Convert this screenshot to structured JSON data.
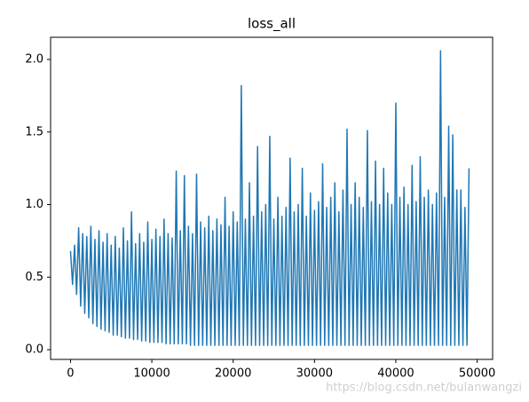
{
  "chart_data": {
    "type": "line",
    "title": "loss_all",
    "color": "#1f77b4",
    "x": [
      0,
      250,
      500,
      750,
      1000,
      1250,
      1500,
      1750,
      2000,
      2250,
      2500,
      2750,
      3000,
      3250,
      3500,
      3750,
      4000,
      4250,
      4500,
      4750,
      5000,
      5250,
      5500,
      5750,
      6000,
      6250,
      6500,
      6750,
      7000,
      7250,
      7500,
      7750,
      8000,
      8250,
      8500,
      8750,
      9000,
      9250,
      9500,
      9750,
      10000,
      10250,
      10500,
      10750,
      11000,
      11250,
      11500,
      11750,
      12000,
      12250,
      12500,
      12750,
      13000,
      13250,
      13500,
      13750,
      14000,
      14250,
      14500,
      14750,
      15000,
      15250,
      15500,
      15750,
      16000,
      16250,
      16500,
      16750,
      17000,
      17250,
      17500,
      17750,
      18000,
      18250,
      18500,
      18750,
      19000,
      19250,
      19500,
      19750,
      20000,
      20250,
      20500,
      20750,
      21000,
      21250,
      21500,
      21750,
      22000,
      22250,
      22500,
      22750,
      23000,
      23250,
      23500,
      23750,
      24000,
      24250,
      24500,
      24750,
      25000,
      25250,
      25500,
      25750,
      26000,
      26250,
      26500,
      26750,
      27000,
      27250,
      27500,
      27750,
      28000,
      28250,
      28500,
      28750,
      29000,
      29250,
      29500,
      29750,
      30000,
      30250,
      30500,
      30750,
      31000,
      31250,
      31500,
      31750,
      32000,
      32250,
      32500,
      32750,
      33000,
      33250,
      33500,
      33750,
      34000,
      34250,
      34500,
      34750,
      35000,
      35250,
      35500,
      35750,
      36000,
      36250,
      36500,
      36750,
      37000,
      37250,
      37500,
      37750,
      38000,
      38250,
      38500,
      38750,
      39000,
      39250,
      39500,
      39750,
      40000,
      40250,
      40500,
      40750,
      41000,
      41250,
      41500,
      41750,
      42000,
      42250,
      42500,
      42750,
      43000,
      43250,
      43500,
      43750,
      44000,
      44250,
      44500,
      44750,
      45000,
      45250,
      45500,
      45750,
      46000,
      46250,
      46500,
      46750,
      47000,
      47250,
      47500,
      47750,
      48000,
      48250,
      48500,
      48750,
      49000
    ],
    "values": [
      0.68,
      0.45,
      0.72,
      0.38,
      0.84,
      0.3,
      0.8,
      0.25,
      0.78,
      0.22,
      0.85,
      0.18,
      0.76,
      0.16,
      0.82,
      0.14,
      0.74,
      0.13,
      0.8,
      0.12,
      0.72,
      0.1,
      0.78,
      0.1,
      0.7,
      0.09,
      0.84,
      0.08,
      0.75,
      0.08,
      0.95,
      0.07,
      0.73,
      0.07,
      0.8,
      0.06,
      0.74,
      0.06,
      0.88,
      0.05,
      0.76,
      0.05,
      0.83,
      0.05,
      0.78,
      0.05,
      0.9,
      0.04,
      0.8,
      0.04,
      0.77,
      0.04,
      1.23,
      0.04,
      0.82,
      0.04,
      1.2,
      0.04,
      0.85,
      0.03,
      0.8,
      0.03,
      1.21,
      0.03,
      0.88,
      0.03,
      0.84,
      0.03,
      0.92,
      0.03,
      0.82,
      0.03,
      0.9,
      0.03,
      0.86,
      0.03,
      1.05,
      0.03,
      0.85,
      0.03,
      0.95,
      0.03,
      0.88,
      0.03,
      1.82,
      0.03,
      0.9,
      0.03,
      1.15,
      0.03,
      0.92,
      0.03,
      1.4,
      0.03,
      0.95,
      0.03,
      1.0,
      0.03,
      1.47,
      0.03,
      0.9,
      0.03,
      1.05,
      0.03,
      0.92,
      0.03,
      0.98,
      0.03,
      1.32,
      0.03,
      0.95,
      0.03,
      1.0,
      0.03,
      1.25,
      0.03,
      0.92,
      0.03,
      1.08,
      0.03,
      0.96,
      0.03,
      1.02,
      0.03,
      1.28,
      0.03,
      0.98,
      0.03,
      1.05,
      0.03,
      1.15,
      0.03,
      0.95,
      0.03,
      1.1,
      0.03,
      1.52,
      0.03,
      1.0,
      0.03,
      1.15,
      0.03,
      1.05,
      0.03,
      0.98,
      0.03,
      1.51,
      0.03,
      1.02,
      0.03,
      1.3,
      0.03,
      1.0,
      0.03,
      1.25,
      0.03,
      1.08,
      0.03,
      1.0,
      0.03,
      1.7,
      0.03,
      1.05,
      0.03,
      1.12,
      0.03,
      1.0,
      0.03,
      1.27,
      0.03,
      1.02,
      0.03,
      1.33,
      0.03,
      1.05,
      0.03,
      1.1,
      0.03,
      1.0,
      0.03,
      1.08,
      0.03,
      2.06,
      0.03,
      1.05,
      0.03,
      1.54,
      0.03,
      1.48,
      0.03,
      1.1,
      0.03,
      1.1,
      0.03,
      0.98,
      0.03,
      1.25
    ],
    "xlim": [
      -2450,
      51900
    ],
    "ylim": [
      -0.067,
      2.153
    ],
    "xticks": [
      0,
      10000,
      20000,
      30000,
      40000,
      50000
    ],
    "yticks": [
      {
        "value": 0,
        "label": "0.0"
      },
      0.5,
      {
        "value": 1,
        "label": "1.0"
      },
      1.5,
      {
        "value": 2,
        "label": "2.0"
      }
    ],
    "watermark": "https://blog.csdn.net/bulanwangzi"
  }
}
